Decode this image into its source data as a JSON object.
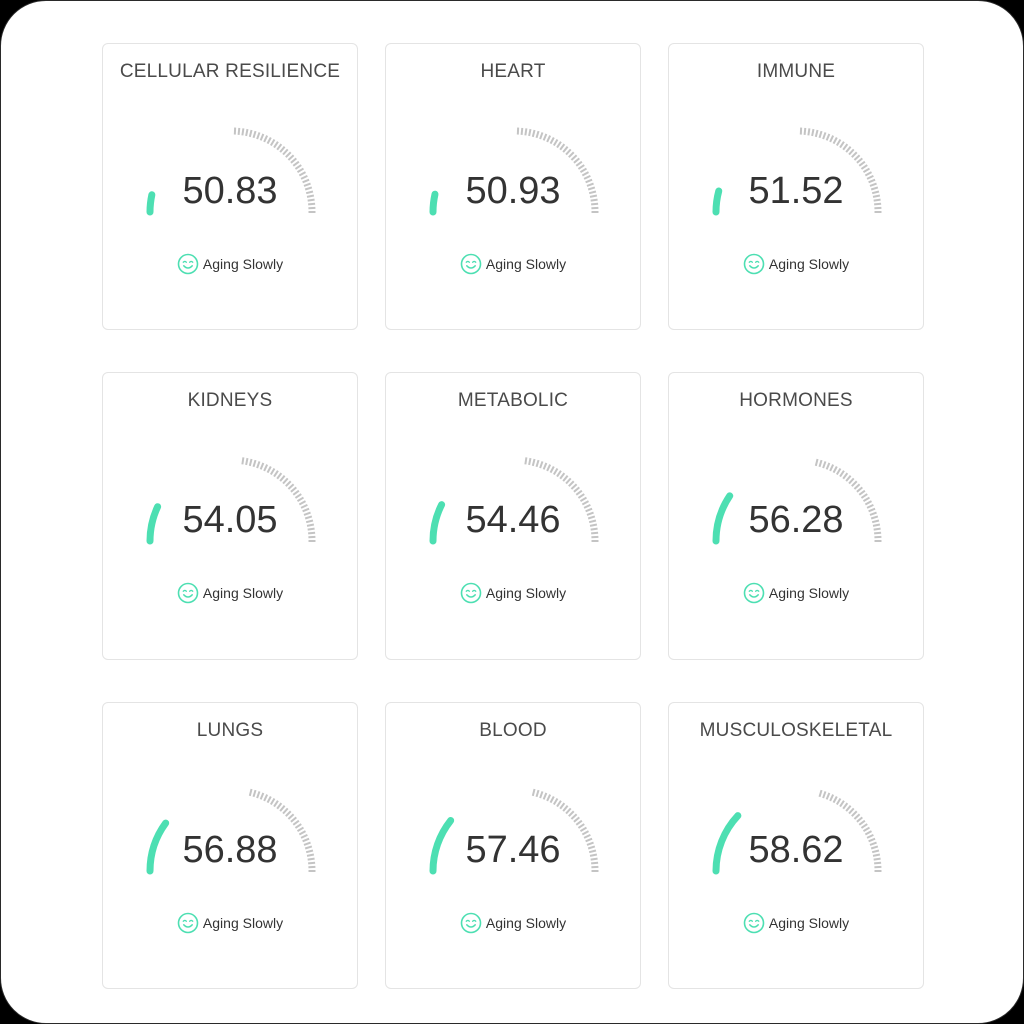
{
  "theme": {
    "accent": "#4ddfb2",
    "track": "#c4c4c4",
    "status_icon_color": "#4ddfb2"
  },
  "gauge_range": [
    0,
    100
  ],
  "cards": [
    {
      "title": "CELLULAR RESILIENCE",
      "score": "50.83",
      "value": 50.83,
      "status": "Aging Slowly",
      "status_icon": "smile-icon"
    },
    {
      "title": "HEART",
      "score": "50.93",
      "value": 50.93,
      "status": "Aging Slowly",
      "status_icon": "smile-icon"
    },
    {
      "title": "IMMUNE",
      "score": "51.52",
      "value": 51.52,
      "status": "Aging Slowly",
      "status_icon": "smile-icon"
    },
    {
      "title": "KIDNEYS",
      "score": "54.05",
      "value": 54.05,
      "status": "Aging Slowly",
      "status_icon": "smile-icon"
    },
    {
      "title": "METABOLIC",
      "score": "54.46",
      "value": 54.46,
      "status": "Aging Slowly",
      "status_icon": "smile-icon"
    },
    {
      "title": "HORMONES",
      "score": "56.28",
      "value": 56.28,
      "status": "Aging Slowly",
      "status_icon": "smile-icon"
    },
    {
      "title": "LUNGS",
      "score": "56.88",
      "value": 56.88,
      "status": "Aging Slowly",
      "status_icon": "smile-icon"
    },
    {
      "title": "BLOOD",
      "score": "57.46",
      "value": 57.46,
      "status": "Aging Slowly",
      "status_icon": "smile-icon"
    },
    {
      "title": "MUSCULOSKELETAL",
      "score": "58.62",
      "value": 58.62,
      "status": "Aging Slowly",
      "status_icon": "smile-icon"
    }
  ]
}
